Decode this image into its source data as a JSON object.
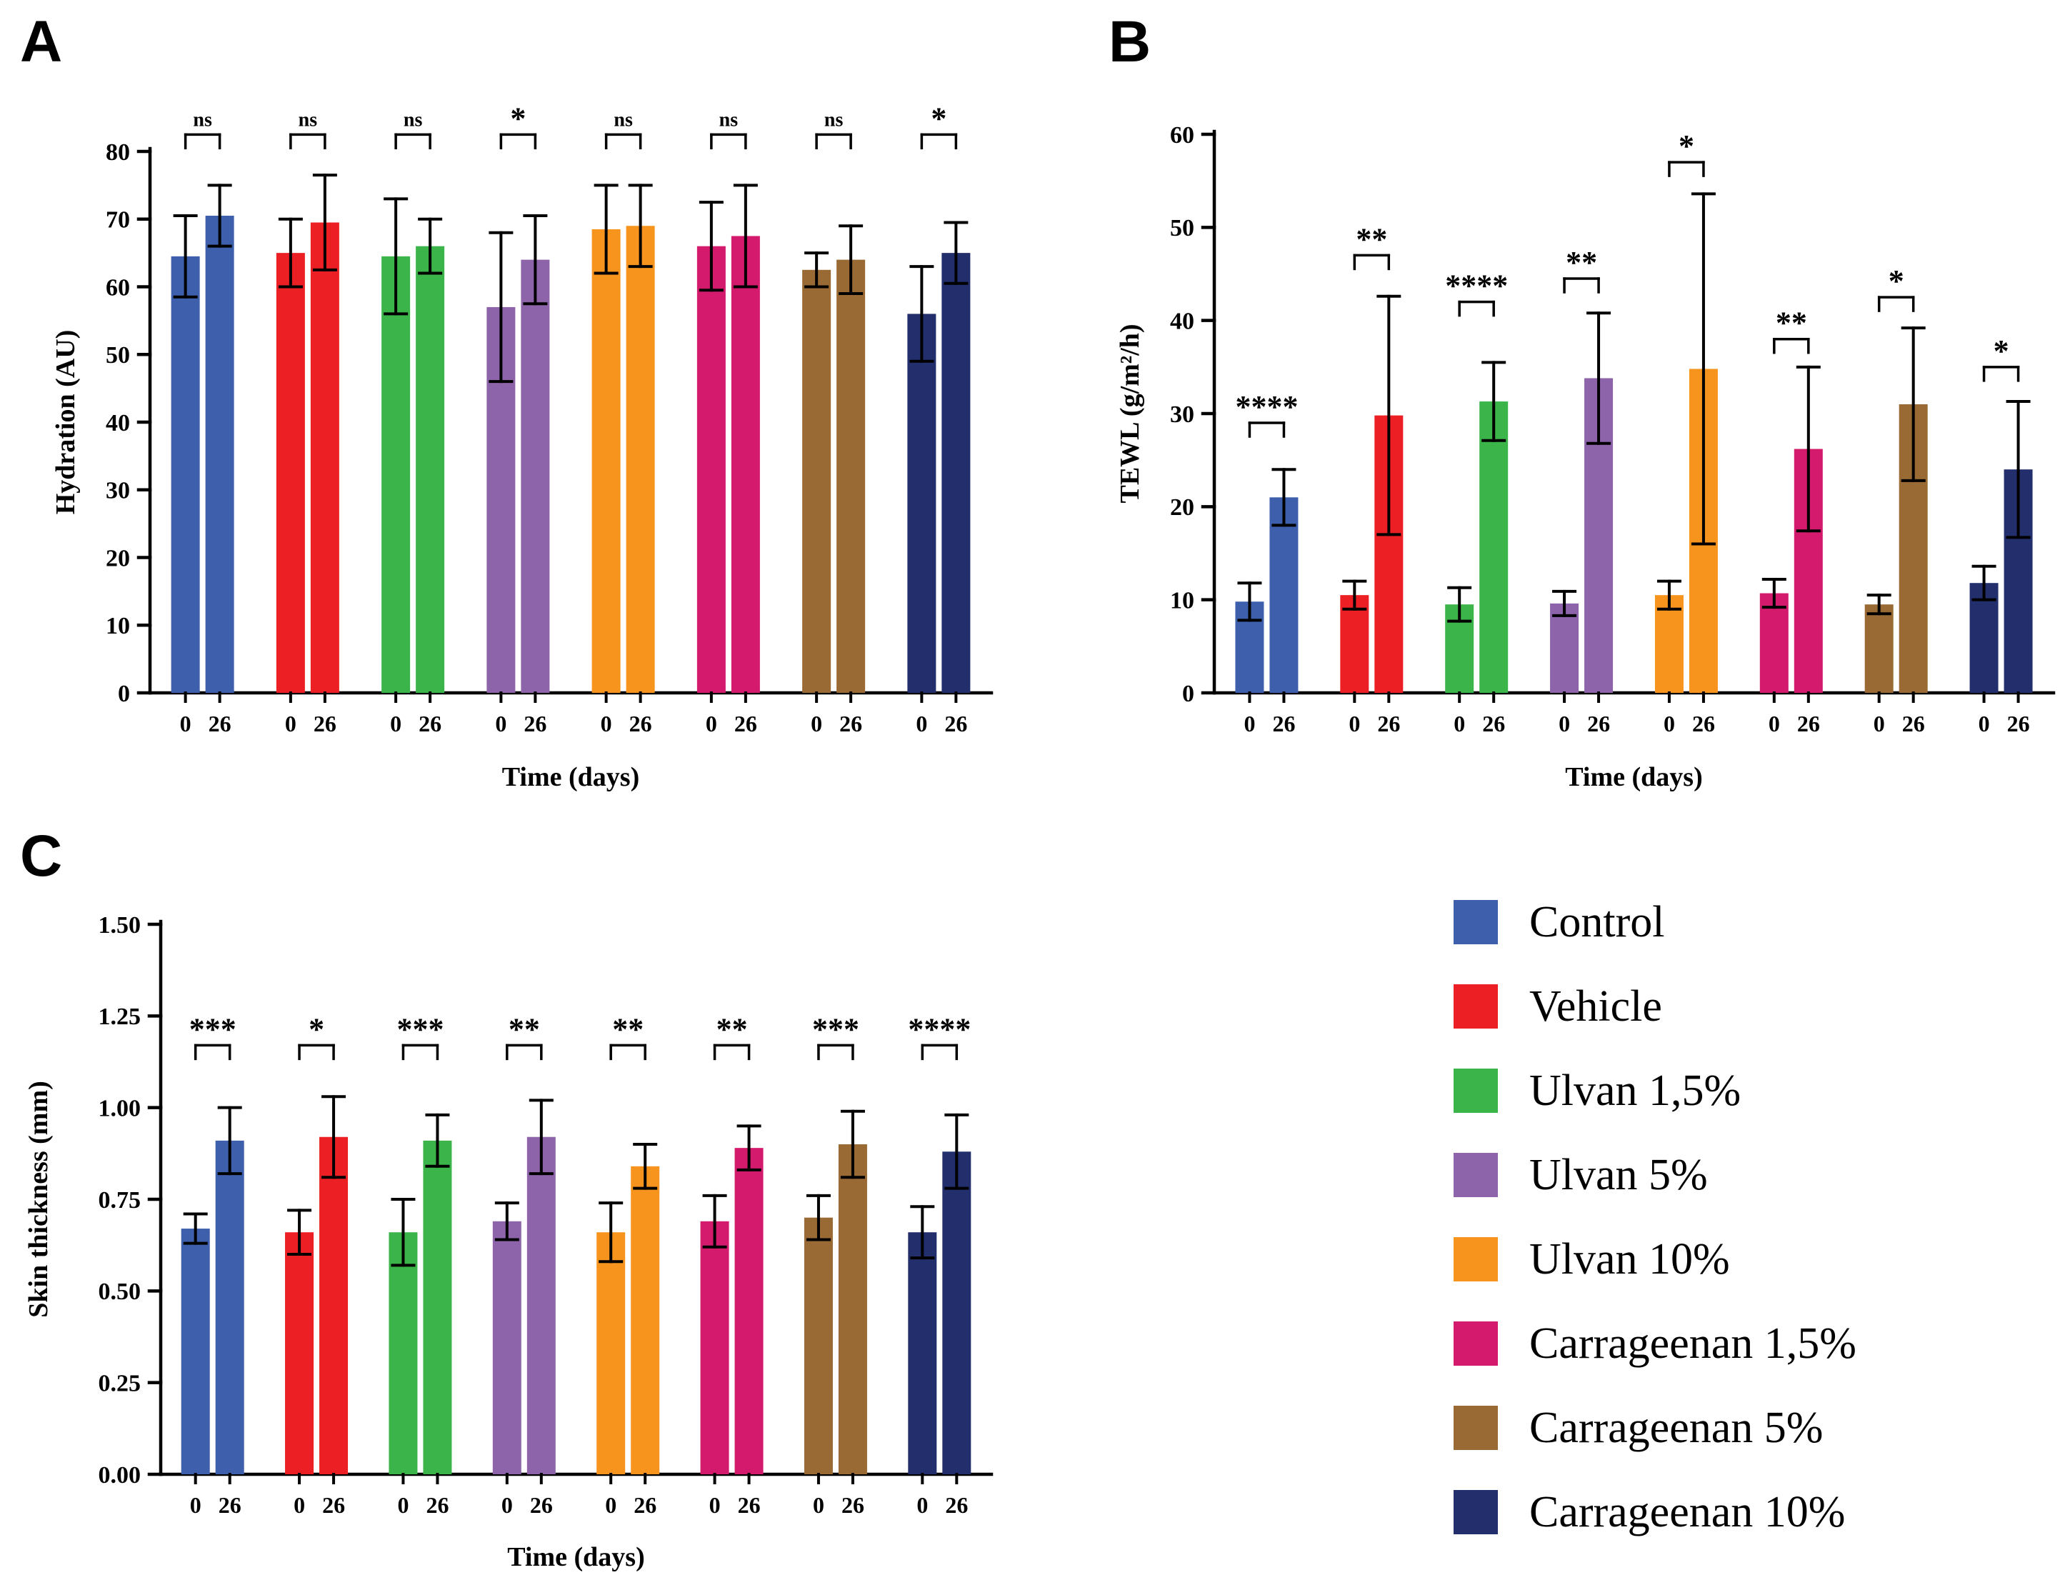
{
  "figure": {
    "panels": [
      {
        "label": "A"
      },
      {
        "label": "B"
      },
      {
        "label": "C"
      }
    ]
  },
  "legend": {
    "items": [
      {
        "label": "Control",
        "color": "#3e5fac"
      },
      {
        "label": "Vehicle",
        "color": "#ec2024"
      },
      {
        "label": "Ulvan 1,5%",
        "color": "#3bb54a"
      },
      {
        "label": "Ulvan 5%",
        "color": "#8d64aa"
      },
      {
        "label": "Ulvan 10%",
        "color": "#f7941e"
      },
      {
        "label": "Carrageenan 1,5%",
        "color": "#d41a6d"
      },
      {
        "label": "Carrageenan 5%",
        "color": "#996a33"
      },
      {
        "label": "Carrageenan 10%",
        "color": "#232f6d"
      }
    ]
  },
  "chart_data": [
    {
      "panel": "A",
      "type": "bar",
      "ylabel": "Hydration (AU)",
      "xlabel": "Time (days)",
      "ylim": [
        0,
        80
      ],
      "ytick_step": 10,
      "ytick_labels": [
        "0",
        "10",
        "20",
        "30",
        "40",
        "50",
        "60",
        "70",
        "80"
      ],
      "categories": [
        "0",
        "26"
      ],
      "groups": [
        "Control",
        "Vehicle",
        "Ulvan 1,5%",
        "Ulvan 5%",
        "Ulvan 10%",
        "Carrageenan 1,5%",
        "Carrageenan 5%",
        "Carrageenan 10%"
      ],
      "series": [
        {
          "name": "0",
          "values": [
            64.5,
            65.0,
            64.5,
            57.0,
            68.5,
            66.0,
            62.5,
            56.0
          ],
          "errors": [
            6.0,
            5.0,
            8.5,
            11.0,
            6.5,
            6.5,
            2.5,
            7.0
          ]
        },
        {
          "name": "26",
          "values": [
            70.5,
            69.5,
            66.0,
            64.0,
            69.0,
            67.5,
            64.0,
            65.0
          ],
          "errors": [
            4.5,
            7.0,
            4.0,
            6.5,
            6.0,
            7.5,
            5.0,
            4.5
          ]
        }
      ],
      "significance": [
        "ns",
        "ns",
        "ns",
        "*",
        "ns",
        "ns",
        "ns",
        "*"
      ],
      "sig_y": [
        82.5,
        82.5,
        82.5,
        82.5,
        82.5,
        82.5,
        82.5,
        82.5
      ],
      "legend_position": "none",
      "grid": false
    },
    {
      "panel": "B",
      "type": "bar",
      "ylabel": "TEWL (g/m²/h)",
      "xlabel": "Time (days)",
      "ylim": [
        0,
        60
      ],
      "ytick_step": 10,
      "ytick_labels": [
        "0",
        "10",
        "20",
        "30",
        "40",
        "50",
        "60"
      ],
      "categories": [
        "0",
        "26"
      ],
      "groups": [
        "Control",
        "Vehicle",
        "Ulvan 1,5%",
        "Ulvan 5%",
        "Ulvan 10%",
        "Carrageenan 1,5%",
        "Carrageenan 5%",
        "Carrageenan 10%"
      ],
      "series": [
        {
          "name": "0",
          "values": [
            9.8,
            10.5,
            9.5,
            9.6,
            10.5,
            10.7,
            9.5,
            11.8
          ],
          "errors": [
            2.0,
            1.5,
            1.8,
            1.3,
            1.5,
            1.5,
            1.0,
            1.8
          ]
        },
        {
          "name": "26",
          "values": [
            21.0,
            29.8,
            31.3,
            33.8,
            34.8,
            26.2,
            31.0,
            24.0
          ],
          "errors": [
            3.0,
            12.8,
            4.2,
            7.0,
            18.8,
            8.8,
            8.2,
            7.3
          ]
        }
      ],
      "significance": [
        "****",
        "**",
        "****",
        "**",
        "*",
        "**",
        "*",
        "*"
      ],
      "sig_y": [
        29.0,
        47.0,
        42.0,
        44.5,
        57.0,
        38.0,
        42.5,
        35.0
      ],
      "legend_position": "none",
      "grid": false
    },
    {
      "panel": "C",
      "type": "bar",
      "ylabel": "Skin thickness (mm)",
      "xlabel": "Time (days)",
      "ylim": [
        0,
        1.5
      ],
      "ytick_step": 0.25,
      "ytick_labels": [
        "0.00",
        "0.25",
        "0.50",
        "0.75",
        "1.00",
        "1.25",
        "1.50"
      ],
      "categories": [
        "0",
        "26"
      ],
      "groups": [
        "Control",
        "Vehicle",
        "Ulvan 1,5%",
        "Ulvan 5%",
        "Ulvan 10%",
        "Carrageenan 1,5%",
        "Carrageenan 5%",
        "Carrageenan 10%"
      ],
      "series": [
        {
          "name": "0",
          "values": [
            0.67,
            0.66,
            0.66,
            0.69,
            0.66,
            0.69,
            0.7,
            0.66
          ],
          "errors": [
            0.04,
            0.06,
            0.09,
            0.05,
            0.08,
            0.07,
            0.06,
            0.07
          ]
        },
        {
          "name": "26",
          "values": [
            0.91,
            0.92,
            0.91,
            0.92,
            0.84,
            0.89,
            0.9,
            0.88
          ],
          "errors": [
            0.09,
            0.11,
            0.07,
            0.1,
            0.06,
            0.06,
            0.09,
            0.1
          ]
        }
      ],
      "significance": [
        "***",
        "*",
        "***",
        "**",
        "**",
        "**",
        "***",
        "****"
      ],
      "sig_y": [
        1.17,
        1.17,
        1.17,
        1.17,
        1.17,
        1.17,
        1.17,
        1.17
      ],
      "legend_position": "none",
      "grid": false
    }
  ]
}
